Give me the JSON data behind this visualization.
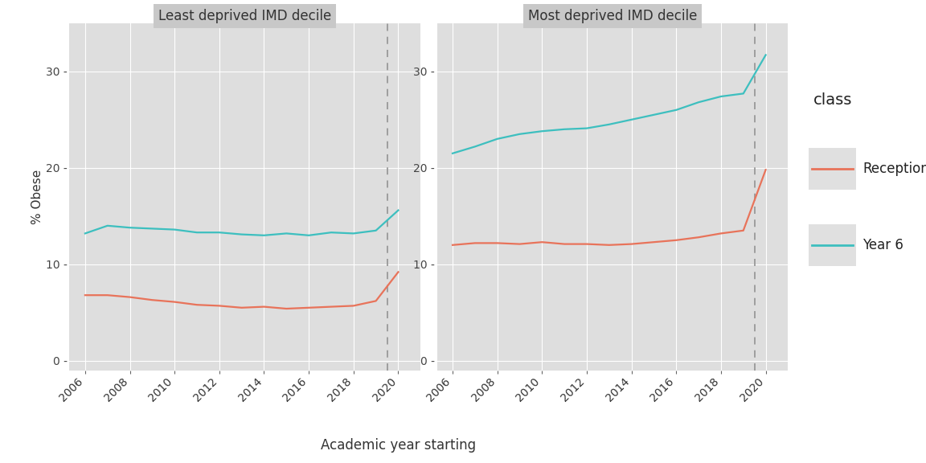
{
  "years": [
    2006,
    2007,
    2008,
    2009,
    2010,
    2011,
    2012,
    2013,
    2014,
    2015,
    2016,
    2017,
    2018,
    2019,
    2020
  ],
  "least_reception": [
    6.8,
    6.8,
    6.6,
    6.3,
    6.1,
    5.8,
    5.7,
    5.5,
    5.6,
    5.4,
    5.5,
    5.6,
    5.7,
    6.2,
    9.2
  ],
  "least_year6": [
    13.2,
    14.0,
    13.8,
    13.7,
    13.6,
    13.3,
    13.3,
    13.1,
    13.0,
    13.2,
    13.0,
    13.3,
    13.2,
    13.5,
    15.6
  ],
  "most_reception": [
    12.0,
    12.2,
    12.2,
    12.1,
    12.3,
    12.1,
    12.1,
    12.0,
    12.1,
    12.3,
    12.5,
    12.8,
    13.2,
    13.5,
    19.8
  ],
  "most_year6": [
    21.5,
    22.2,
    23.0,
    23.5,
    23.8,
    24.0,
    24.1,
    24.5,
    25.0,
    25.5,
    26.0,
    26.8,
    27.4,
    27.7,
    31.7
  ],
  "dashed_line_x": 2019,
  "reception_color": "#E8735A",
  "year6_color": "#3DBFBF",
  "outer_bg": "#FFFFFF",
  "panel_bg": "#DEDEDE",
  "strip_bg": "#C8C8C8",
  "grid_color": "#FFFFFF",
  "dashed_color": "#999999",
  "legend_key_bg": "#E0E0E0",
  "ylim": [
    -1,
    35
  ],
  "yticks": [
    0,
    10,
    20,
    30
  ],
  "xlim": [
    2005.3,
    2021.0
  ],
  "xticks": [
    2006,
    2008,
    2010,
    2012,
    2014,
    2016,
    2018,
    2020
  ],
  "panels": [
    "Least deprived IMD decile",
    "Most deprived IMD decile"
  ],
  "xlabel": "Academic year starting",
  "ylabel": "% Obese",
  "legend_title": "class",
  "legend_labels": [
    "Reception",
    "Year 6"
  ],
  "line_width": 1.6,
  "strip_fontsize": 12,
  "axis_fontsize": 11,
  "tick_fontsize": 10,
  "legend_title_fontsize": 14,
  "legend_label_fontsize": 12
}
